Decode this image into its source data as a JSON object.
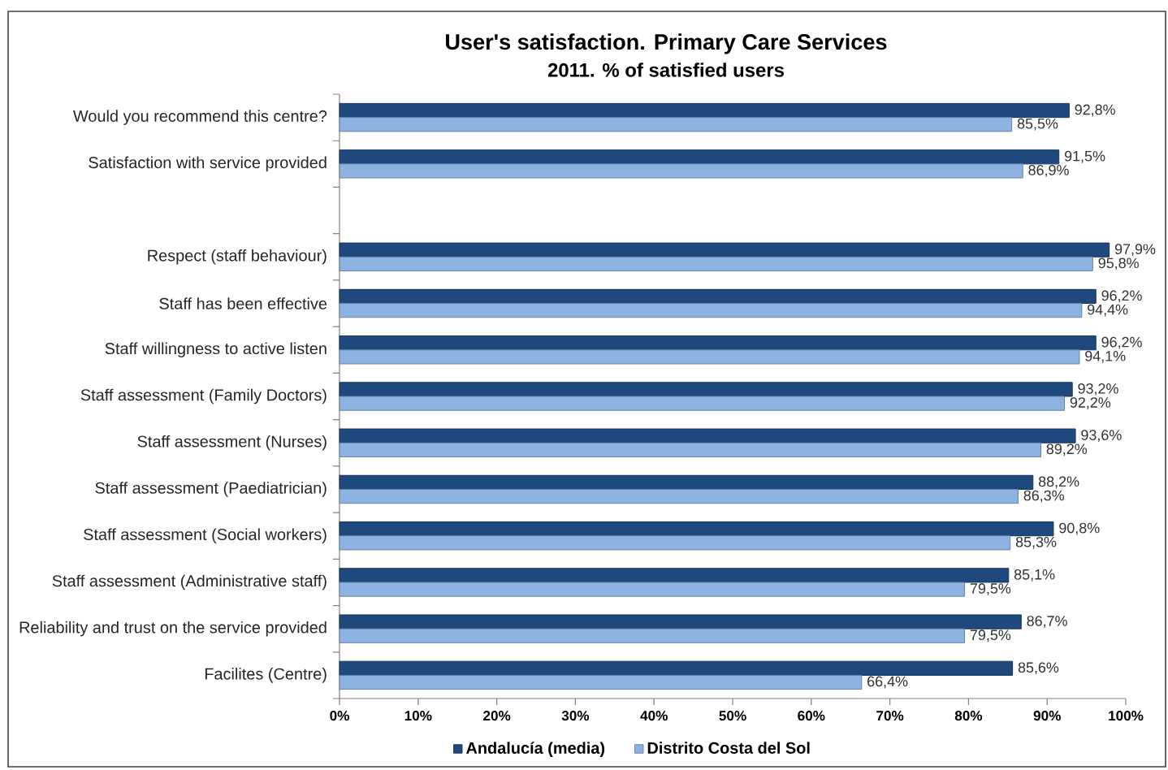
{
  "chart_data": {
    "type": "bar",
    "orientation": "horizontal",
    "title": "User's satisfaction. Primary Care Services",
    "subtitle": "2011. % of satisfied users",
    "categories": [
      "Would you recommend this centre?",
      "Satisfaction with service provided",
      null,
      "Respect (staff behaviour)",
      "Staff has been effective",
      "Staff willingness to active listen",
      "Staff assessment (Family Doctors)",
      "Staff assessment (Nurses)",
      "Staff assessment (Paediatrician)",
      "Staff assessment (Social workers)",
      "Staff assessment (Administrative staff)",
      "Reliability and trust on the service provided",
      "Facilites (Centre)"
    ],
    "series": [
      {
        "name": "Andalucía (media)",
        "color": "#1f497d",
        "values": [
          92.8,
          91.5,
          null,
          97.9,
          96.2,
          96.2,
          93.2,
          93.6,
          88.2,
          90.8,
          85.1,
          86.7,
          85.6
        ],
        "value_labels": [
          "92,8%",
          "91,5%",
          null,
          "97,9%",
          "96,2%",
          "96,2%",
          "93,2%",
          "93,6%",
          "88,2%",
          "90,8%",
          "85,1%",
          "86,7%",
          "85,6%"
        ]
      },
      {
        "name": "Distrito Costa del Sol",
        "color": "#8db3e2",
        "values": [
          85.5,
          86.9,
          null,
          95.8,
          94.4,
          94.1,
          92.2,
          89.2,
          86.3,
          85.3,
          79.5,
          79.5,
          66.4
        ],
        "value_labels": [
          "85,5%",
          "86,9%",
          null,
          "95,8%",
          "94,4%",
          "94,1%",
          "92,2%",
          "89,2%",
          "86,3%",
          "85,3%",
          "79,5%",
          "79,5%",
          "66,4%"
        ]
      }
    ],
    "xlim": [
      0,
      100
    ],
    "xticks": [
      {
        "value": 0,
        "label": "0%"
      },
      {
        "value": 10,
        "label": "10%"
      },
      {
        "value": 20,
        "label": "20%"
      },
      {
        "value": 30,
        "label": "30%"
      },
      {
        "value": 40,
        "label": "40%"
      },
      {
        "value": 50,
        "label": "50%"
      },
      {
        "value": 60,
        "label": "60%"
      },
      {
        "value": 70,
        "label": "70%"
      },
      {
        "value": 80,
        "label": "80%"
      },
      {
        "value": 90,
        "label": "90%"
      },
      {
        "value": 100,
        "label": "100%"
      }
    ],
    "legend": "bottom"
  }
}
